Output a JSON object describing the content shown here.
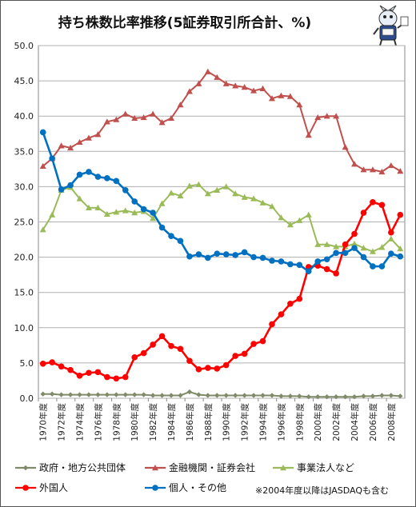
{
  "chart_data": {
    "type": "line",
    "title": "持ち株数比率推移(5証券取引所合計、%)",
    "note": "※2004年度以降はJASDAQも含む",
    "ylim": [
      0,
      50
    ],
    "yticks": [
      "0.0",
      "5.0",
      "10.0",
      "15.0",
      "20.0",
      "25.0",
      "30.0",
      "35.0",
      "40.0",
      "45.0",
      "50.0"
    ],
    "x": [
      1970,
      1971,
      1972,
      1973,
      1974,
      1975,
      1976,
      1977,
      1978,
      1979,
      1980,
      1981,
      1982,
      1983,
      1984,
      1985,
      1986,
      1987,
      1988,
      1989,
      1990,
      1991,
      1992,
      1993,
      1994,
      1995,
      1996,
      1997,
      1998,
      1999,
      2000,
      2001,
      2002,
      2003,
      2004,
      2005,
      2006,
      2007,
      2008,
      2009
    ],
    "xtick_labels": [
      "1970年度",
      "1972年度",
      "1974年度",
      "1976年度",
      "1978年度",
      "1980年度",
      "1982年度",
      "1984年度",
      "1986年度",
      "1988年度",
      "1990年度",
      "1992年度",
      "1994年度",
      "1996年度",
      "1998年度",
      "2000年度",
      "2002年度",
      "2004年度",
      "2006年度",
      "2008年度"
    ],
    "xtick_years": [
      1970,
      1972,
      1974,
      1976,
      1978,
      1980,
      1982,
      1984,
      1986,
      1988,
      1990,
      1992,
      1994,
      1996,
      1998,
      2000,
      2002,
      2004,
      2006,
      2008
    ],
    "legend_position": "bottom",
    "grid": true,
    "series": [
      {
        "name": "政府・地方公共団体",
        "color": "#7f8a68",
        "marker": "diamond",
        "values": [
          0.6,
          0.6,
          0.5,
          0.5,
          0.5,
          0.5,
          0.5,
          0.5,
          0.5,
          0.5,
          0.5,
          0.5,
          0.4,
          0.4,
          0.4,
          0.4,
          0.9,
          0.5,
          0.4,
          0.4,
          0.4,
          0.4,
          0.4,
          0.4,
          0.4,
          0.4,
          0.3,
          0.3,
          0.3,
          0.2,
          0.2,
          0.2,
          0.2,
          0.2,
          0.2,
          0.3,
          0.3,
          0.4,
          0.4,
          0.3
        ]
      },
      {
        "name": "金融機関・証券会社",
        "color": "#c0504d",
        "marker": "triangle",
        "values": [
          32.9,
          34.0,
          35.8,
          35.5,
          36.3,
          36.9,
          37.4,
          39.2,
          39.5,
          40.3,
          39.7,
          39.8,
          40.3,
          39.1,
          39.7,
          41.6,
          43.5,
          44.6,
          46.3,
          45.5,
          44.6,
          44.3,
          44.1,
          43.6,
          43.9,
          42.5,
          42.9,
          42.8,
          41.6,
          37.3,
          39.8,
          40.0,
          40.0,
          35.6,
          33.2,
          32.4,
          32.4,
          32.1,
          33.0,
          32.2
        ]
      },
      {
        "name": "事業法人など",
        "color": "#9bbb59",
        "marker": "triangle",
        "values": [
          23.9,
          26.0,
          29.5,
          29.9,
          28.3,
          27.0,
          27.0,
          26.1,
          26.4,
          26.6,
          26.3,
          26.5,
          25.5,
          27.6,
          29.1,
          28.7,
          30.1,
          30.3,
          29.0,
          29.5,
          30.0,
          29.0,
          28.5,
          28.3,
          27.7,
          27.2,
          25.6,
          24.6,
          25.2,
          26.0,
          21.8,
          21.8,
          21.5,
          21.5,
          21.9,
          21.3,
          20.8,
          21.4,
          22.6,
          21.2
        ]
      },
      {
        "name": "外国人",
        "color": "#ff0000",
        "marker": "circle",
        "values": [
          4.9,
          5.1,
          4.5,
          4.0,
          3.2,
          3.6,
          3.7,
          3.0,
          2.8,
          3.0,
          5.8,
          6.4,
          7.6,
          8.8,
          7.4,
          7.0,
          5.3,
          4.1,
          4.3,
          4.2,
          4.7,
          6.0,
          6.3,
          7.7,
          8.1,
          10.5,
          11.9,
          13.4,
          14.1,
          18.6,
          18.8,
          18.3,
          17.7,
          21.8,
          23.3,
          26.3,
          27.8,
          27.4,
          23.5,
          26.0
        ]
      },
      {
        "name": "個人・その他",
        "color": "#0070c0",
        "marker": "circle",
        "values": [
          37.7,
          34.0,
          29.6,
          30.2,
          31.7,
          32.1,
          31.4,
          31.2,
          30.8,
          29.5,
          27.9,
          26.8,
          26.3,
          24.2,
          23.0,
          22.3,
          20.1,
          20.4,
          19.9,
          20.5,
          20.4,
          20.3,
          20.7,
          20.0,
          19.9,
          19.5,
          19.4,
          19.0,
          18.9,
          18.0,
          19.4,
          19.7,
          20.6,
          20.6,
          21.3,
          20.0,
          18.7,
          18.7,
          20.5,
          20.1
        ]
      }
    ]
  }
}
